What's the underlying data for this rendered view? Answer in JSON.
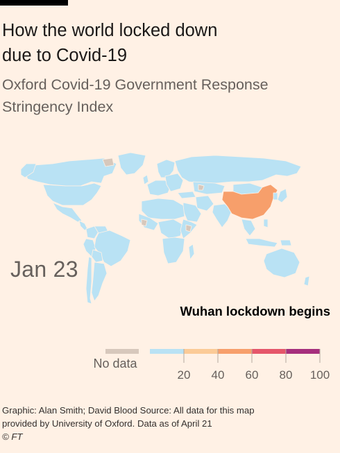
{
  "header": {
    "title_line1": "How the world locked down",
    "title_line2": "due to Covid-19",
    "subtitle_line1": "Oxford Covid-19 Government Response",
    "subtitle_line2": "Stringency Index"
  },
  "map": {
    "date_label": "Jan 23",
    "annotation": "Wuhan lockdown begins",
    "highlighted_country": "China",
    "highlighted_color": "#f79f6b",
    "default_country_color": "#b9e2f4",
    "no_data_color": "#d7c8bc",
    "stringency_values": {
      "China": 60,
      "default": 5
    }
  },
  "legend": {
    "no_data_label": "No data",
    "no_data_color": "#d7c8bc",
    "bins": [
      {
        "from": 0,
        "to": 20,
        "color": "#b9e2f4"
      },
      {
        "from": 20,
        "to": 40,
        "color": "#fbcb97"
      },
      {
        "from": 40,
        "to": 60,
        "color": "#f79f6b"
      },
      {
        "from": 60,
        "to": 80,
        "color": "#e5566a"
      },
      {
        "from": 80,
        "to": 100,
        "color": "#a62f7d"
      }
    ],
    "tick_labels": [
      "20",
      "40",
      "60",
      "80",
      "100"
    ]
  },
  "footer": {
    "line1": "Graphic: Alan Smith; David Blood  Source: All data for this map",
    "line2": "provided by University of Oxford. Data as of April 21",
    "line3": "© FT"
  }
}
